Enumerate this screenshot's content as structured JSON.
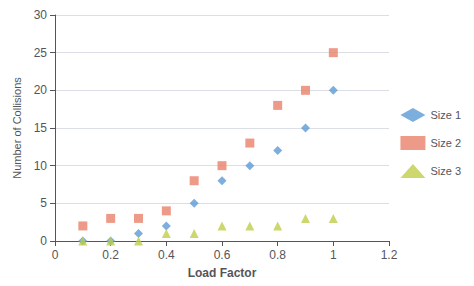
{
  "chart_data": {
    "type": "scatter",
    "xlabel": "Load Factor",
    "ylabel": "Number of Collisions",
    "x": [
      0.1,
      0.2,
      0.3,
      0.4,
      0.5,
      0.6,
      0.7,
      0.8,
      0.9,
      1.0
    ],
    "series": [
      {
        "name": "Size 1",
        "color": "#5B9BD5",
        "marker": "diamond",
        "values": [
          0,
          0,
          1,
          2,
          5,
          8,
          10,
          12,
          15,
          20
        ]
      },
      {
        "name": "Size 2",
        "color": "#E8826A",
        "marker": "square",
        "values": [
          2,
          3,
          3,
          4,
          8,
          10,
          13,
          18,
          20,
          25
        ]
      },
      {
        "name": "Size 3",
        "color": "#BFCE4A",
        "marker": "triangle",
        "values": [
          0,
          0,
          0,
          1,
          1,
          2,
          2,
          2,
          3,
          3
        ]
      }
    ],
    "xlim": [
      0.0,
      1.2
    ],
    "ylim": [
      0,
      30
    ],
    "xticks": [
      0.0,
      0.2,
      0.4,
      0.6,
      0.8,
      1.0,
      1.2
    ],
    "yticks": [
      0,
      5,
      10,
      15,
      20,
      25,
      30
    ],
    "grid": true,
    "legend": "right"
  }
}
